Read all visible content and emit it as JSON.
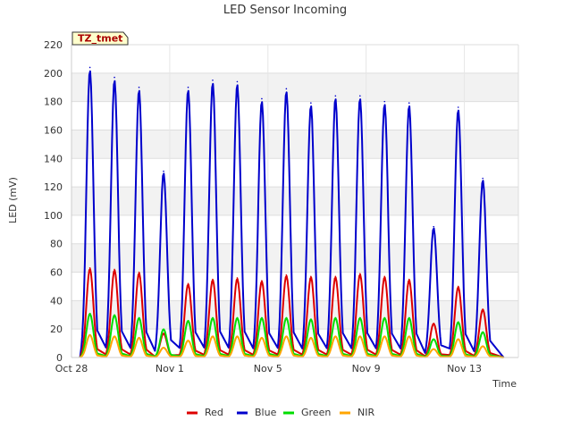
{
  "chart_data": {
    "type": "line",
    "title": "LED Sensor Incoming",
    "xlabel": "Time",
    "ylabel": "LED (mV)",
    "ylim": [
      0,
      220
    ],
    "yticks": [
      0,
      20,
      40,
      60,
      80,
      100,
      120,
      140,
      160,
      180,
      200,
      220
    ],
    "xlim_days": [
      0,
      18.2
    ],
    "xticks": [
      {
        "label": "Oct 28",
        "day": 0
      },
      {
        "label": "Nov 1",
        "day": 4
      },
      {
        "label": "Nov 5",
        "day": 8
      },
      {
        "label": "Nov 9",
        "day": 12
      },
      {
        "label": "Nov 13",
        "day": 16
      }
    ],
    "grid": true,
    "badge": "TZ_tmet",
    "legend_position": "bottom",
    "series": [
      {
        "name": "Red",
        "color": "#dd0000",
        "daily_peaks": [
          63,
          62,
          60,
          17,
          52,
          55,
          56,
          54,
          58,
          57,
          57,
          59,
          57,
          55,
          24,
          50,
          34
        ]
      },
      {
        "name": "Blue",
        "color": "#0000cc",
        "daily_peaks": [
          204,
          197,
          190,
          131,
          190,
          195,
          194,
          182,
          189,
          179,
          184,
          184,
          180,
          179,
          92,
          176,
          126
        ]
      },
      {
        "name": "Green",
        "color": "#00dd00",
        "daily_peaks": [
          31,
          30,
          28,
          20,
          26,
          28,
          28,
          28,
          28,
          27,
          28,
          28,
          28,
          28,
          13,
          25,
          18
        ]
      },
      {
        "name": "NIR",
        "color": "#ffa500",
        "daily_peaks": [
          16,
          15,
          14,
          7,
          12,
          15,
          15,
          14,
          15,
          14,
          15,
          15,
          15,
          15,
          6,
          13,
          8
        ]
      }
    ]
  }
}
